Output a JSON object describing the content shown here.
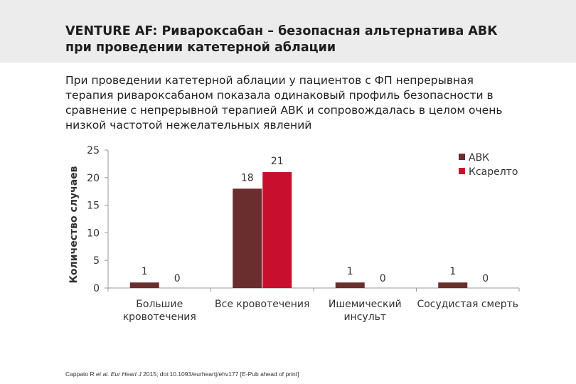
{
  "header": {
    "title_line1": "VENTURE AF: Ривароксабан – безопасная альтернатива АВК",
    "title_line2": "при проведении катетерной аблации"
  },
  "subtitle": {
    "line1": "При проведении катетерной аблации у пациентов с ФП непрерывная",
    "line2": "терапия ривароксабаном показала одинаковый профиль безопасности в",
    "line3": "сравнение с непрерывной терапией АВК и сопровождалась в целом очень",
    "line4": "низкой частотой нежелательных явлений"
  },
  "chart_data": {
    "type": "bar",
    "ylabel": "Количество случаев",
    "xlabel": "",
    "ylim": [
      0,
      25
    ],
    "yticks": [
      0,
      5,
      10,
      15,
      20,
      25
    ],
    "categories": [
      [
        "Большие",
        "кровотечения"
      ],
      [
        "Все кровотечения"
      ],
      [
        "Ишемический",
        "инсульт"
      ],
      [
        "Сосудистая смерть"
      ]
    ],
    "series": [
      {
        "name": "АВК",
        "color": "#6b2e2e",
        "values": [
          1,
          18,
          1,
          1
        ]
      },
      {
        "name": "Ксарелто",
        "color": "#c8102e",
        "values": [
          0,
          21,
          0,
          0
        ]
      }
    ],
    "legend_position": "top-right"
  },
  "footnote": {
    "authors": "Cappato R ",
    "etal": "et al. Eur Heart J",
    "rest": " 2015; doi:10.1093/eurheartj/ehv177 [E-Pub ahead of print]"
  }
}
